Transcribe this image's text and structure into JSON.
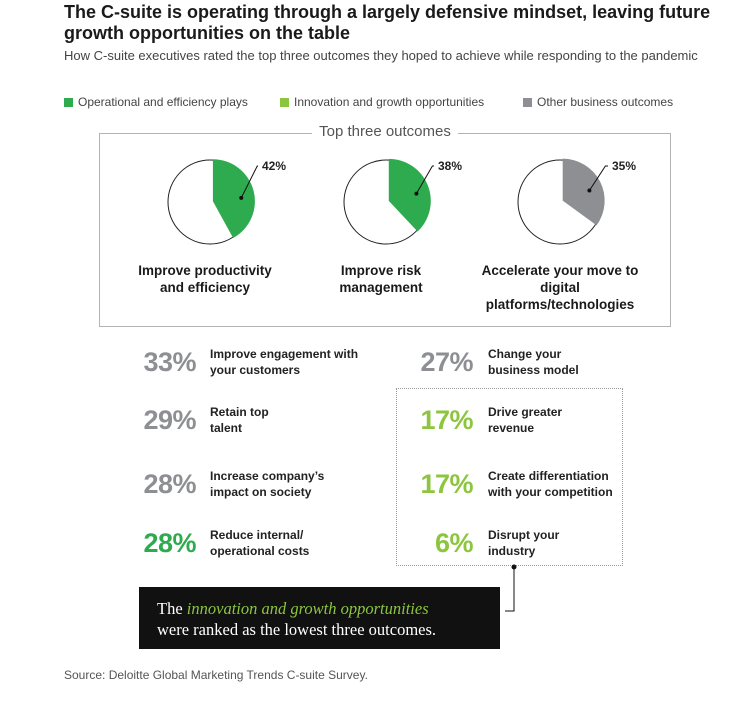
{
  "title": "The C-suite is operating through a largely defensive mindset, leaving future growth opportunities on the table",
  "subtitle": "How C-suite executives rated the top three outcomes they hoped to achieve while responding to the pandemic",
  "colors": {
    "operational": "#2fab4f",
    "innovation": "#8cc63f",
    "other": "#8d8f93"
  },
  "legend": [
    {
      "label": "Operational and efficiency plays",
      "category": "operational"
    },
    {
      "label": "Innovation and growth opportunities",
      "category": "innovation"
    },
    {
      "label": "Other business outcomes",
      "category": "other"
    }
  ],
  "top_three_title": "Top three outcomes",
  "callout": {
    "line1_prefix": "The",
    "line1_highlight": "innovation and growth opportunities",
    "line2": "were ranked as the lowest three outcomes."
  },
  "source": "Source: Deloitte Global Marketing Trends C-suite Survey.",
  "chart_data": {
    "type": "pie",
    "units": "%",
    "top_three": [
      {
        "label": "Improve productivity and efficiency",
        "value": 42,
        "value_label": "42%",
        "category": "operational"
      },
      {
        "label": "Improve risk management",
        "value": 38,
        "value_label": "38%",
        "category": "operational"
      },
      {
        "label": "Accelerate your move to digital platforms/technologies",
        "value": 35,
        "value_label": "35%",
        "category": "other"
      }
    ],
    "others": [
      {
        "label": "Improve engagement with your customers",
        "value": 33,
        "value_label": "33%",
        "category": "other"
      },
      {
        "label": "Retain top talent",
        "value": 29,
        "value_label": "29%",
        "category": "other"
      },
      {
        "label": "Increase company’s impact on society",
        "value": 28,
        "value_label": "28%",
        "category": "other"
      },
      {
        "label": "Reduce internal/ operational costs",
        "value": 28,
        "value_label": "28%",
        "category": "operational"
      },
      {
        "label": "Change your business model",
        "value": 27,
        "value_label": "27%",
        "category": "other"
      },
      {
        "label": "Drive greater revenue",
        "value": 17,
        "value_label": "17%",
        "category": "innovation"
      },
      {
        "label": "Create differentiation with your competition",
        "value": 17,
        "value_label": "17%",
        "category": "innovation"
      },
      {
        "label": "Disrupt your industry",
        "value": 6,
        "value_label": "6%",
        "category": "innovation"
      }
    ]
  }
}
